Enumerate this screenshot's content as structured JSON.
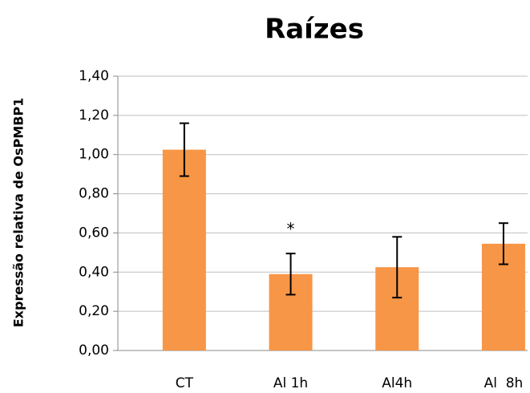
{
  "chart_data": {
    "type": "bar",
    "title": "Raízes",
    "y_label": "Expressão relativa de OsPMBP1",
    "categories": [
      "CT",
      "Al 1h",
      "Al4h",
      "Al  8h"
    ],
    "values": [
      1.025,
      0.39,
      0.425,
      0.545
    ],
    "errors": [
      0.135,
      0.105,
      0.155,
      0.105
    ],
    "color": "#f79646",
    "annotation": "*",
    "ylim": [
      0,
      1.4
    ],
    "yticks": [
      {
        "value": 0,
        "label": "0,00"
      },
      {
        "value": 0.2,
        "label": "0,20"
      },
      {
        "value": 0.4,
        "label": "0,40"
      },
      {
        "value": 0.6,
        "label": "0,60"
      },
      {
        "value": 0.8,
        "label": "0,80"
      },
      {
        "value": 1.0,
        "label": "1,00"
      },
      {
        "value": 1.2,
        "label": "1,20"
      },
      {
        "value": 1.4,
        "label": "1,40"
      }
    ],
    "grid": true
  }
}
